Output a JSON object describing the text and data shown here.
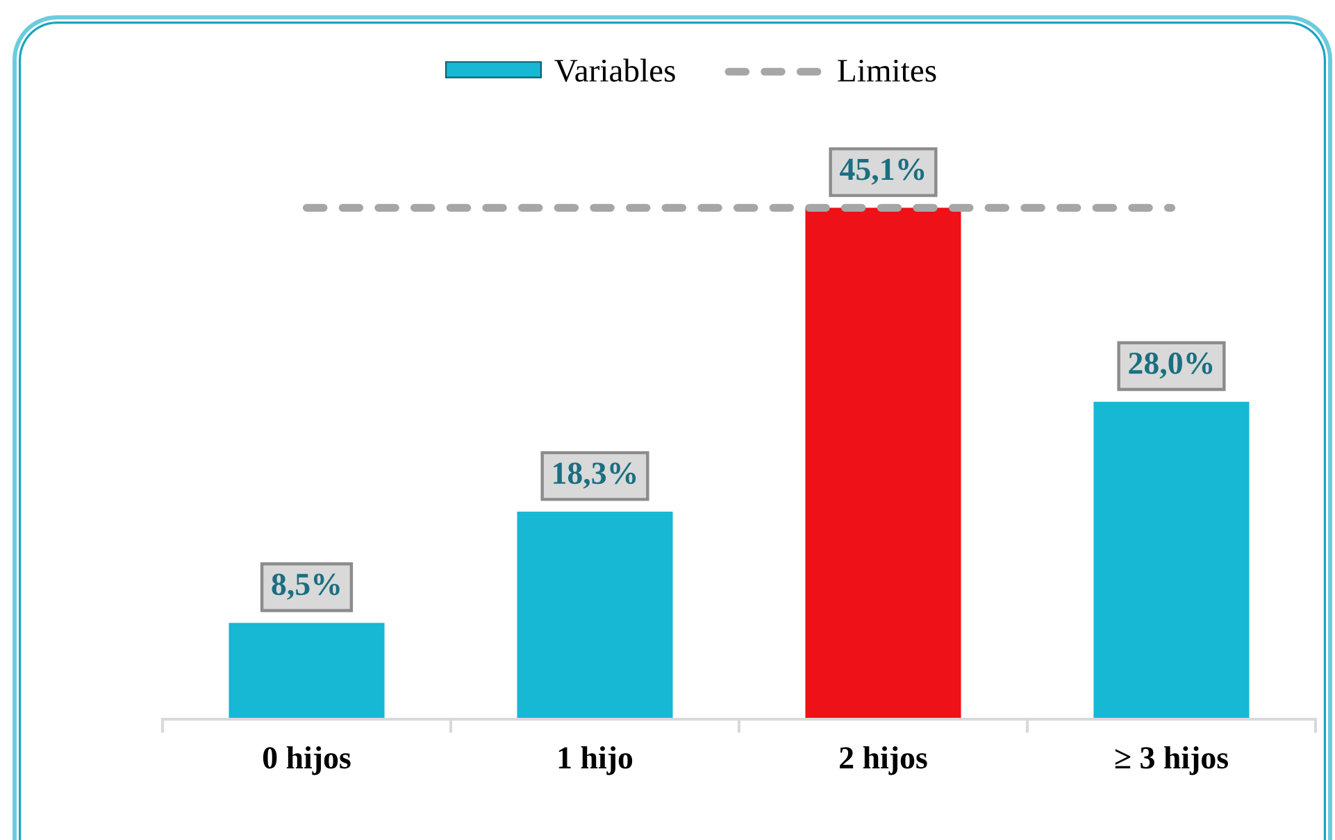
{
  "chart_data": {
    "type": "bar",
    "categories": [
      "0 hijos",
      "1 hijo",
      "2 hijos",
      "≥ 3 hijos"
    ],
    "series": [
      {
        "name": "Variables",
        "color": "#17b8d4",
        "colors": [
          "#17b8d4",
          "#17b8d4",
          "#ee1117",
          "#17b8d4"
        ],
        "values": [
          8.5,
          18.3,
          45.1,
          28.0
        ],
        "value_labels": [
          "8,5%",
          "18,3%",
          "45,1%",
          "28,0%"
        ]
      },
      {
        "name": "Limites",
        "type": "line",
        "color": "#a6a6a6",
        "line_style": "dashed",
        "values": [
          45.1,
          45.1,
          45.1,
          45.1
        ]
      }
    ],
    "legend": "top",
    "grid": false,
    "tick_labels": "x"
  }
}
